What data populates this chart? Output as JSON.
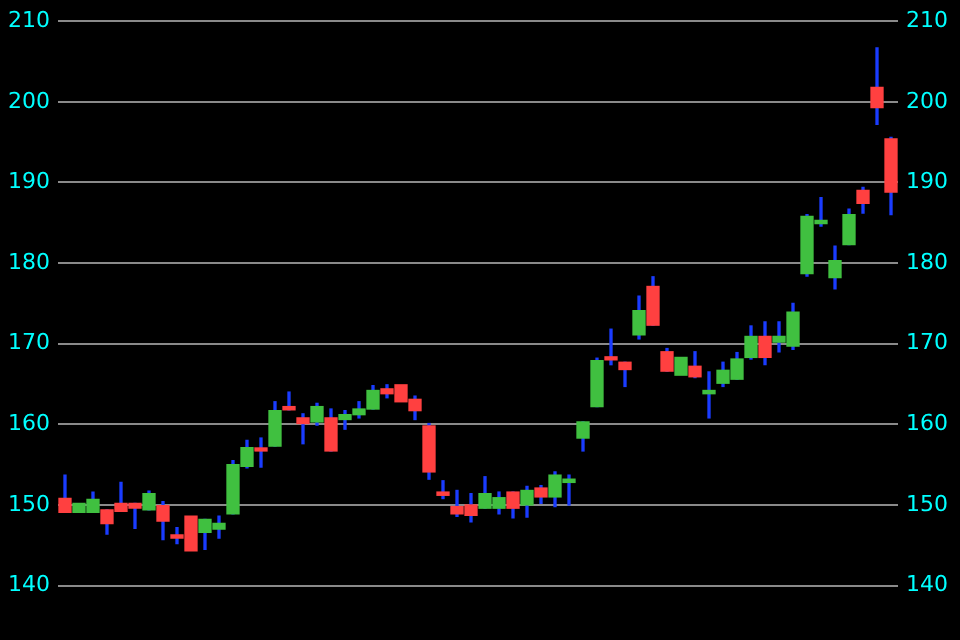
{
  "chart_data": {
    "type": "candlestick",
    "categories": [
      null,
      null,
      null,
      null,
      null,
      null,
      null,
      null,
      null,
      null,
      null,
      null,
      null,
      null,
      null,
      null,
      null,
      null,
      null,
      null,
      null,
      null,
      null,
      null,
      null,
      null,
      null,
      null,
      null,
      null,
      null,
      null,
      null,
      null,
      null,
      null,
      null,
      null,
      null,
      null,
      null,
      null,
      null,
      null,
      null,
      null,
      null,
      null,
      null,
      null,
      null,
      null,
      null,
      null,
      null,
      null,
      null,
      null,
      null,
      null
    ],
    "ohlc": [
      [
        150.8,
        153.7,
        149.1,
        149.1
      ],
      [
        149.1,
        150.2,
        149.1,
        150.2
      ],
      [
        149.1,
        151.6,
        149.1,
        150.7
      ],
      [
        149.4,
        149.4,
        146.4,
        147.7
      ],
      [
        150.2,
        152.8,
        149.2,
        149.2
      ],
      [
        150.2,
        150.2,
        147.1,
        149.6
      ],
      [
        149.4,
        151.7,
        149.4,
        151.4
      ],
      [
        149.9,
        150.4,
        145.7,
        148.0
      ],
      [
        146.3,
        147.2,
        145.2,
        145.9
      ],
      [
        148.6,
        148.6,
        144.3,
        144.3
      ],
      [
        146.6,
        148.2,
        144.5,
        148.2
      ],
      [
        147.0,
        148.6,
        145.9,
        147.7
      ],
      [
        148.9,
        155.5,
        148.9,
        155.0
      ],
      [
        154.8,
        158.0,
        154.6,
        157.1
      ],
      [
        156.9,
        158.3,
        154.7,
        156.7
      ],
      [
        157.3,
        162.8,
        157.3,
        161.7
      ],
      [
        162.2,
        164.0,
        161.8,
        161.8
      ],
      [
        160.8,
        161.3,
        157.6,
        160.1
      ],
      [
        160.3,
        162.6,
        159.9,
        162.2
      ],
      [
        160.8,
        161.9,
        156.7,
        156.7
      ],
      [
        160.6,
        161.7,
        159.4,
        161.2
      ],
      [
        161.2,
        162.8,
        160.8,
        161.9
      ],
      [
        161.9,
        164.8,
        161.9,
        164.2
      ],
      [
        164.4,
        164.9,
        163.3,
        163.8
      ],
      [
        164.9,
        164.9,
        162.8,
        162.8
      ],
      [
        163.1,
        163.5,
        160.6,
        161.7
      ],
      [
        159.8,
        160.1,
        153.2,
        154.1
      ],
      [
        151.6,
        153.0,
        150.8,
        151.2
      ],
      [
        149.8,
        151.8,
        148.6,
        148.9
      ],
      [
        150.0,
        151.4,
        147.9,
        148.7
      ],
      [
        149.6,
        153.5,
        149.6,
        151.4
      ],
      [
        149.6,
        151.6,
        148.9,
        150.9
      ],
      [
        151.6,
        151.6,
        148.4,
        149.6
      ],
      [
        150.0,
        152.3,
        148.5,
        151.8
      ],
      [
        152.1,
        152.4,
        150.2,
        151.0
      ],
      [
        151.0,
        154.1,
        149.8,
        153.7
      ],
      [
        152.8,
        153.7,
        150.0,
        153.2
      ],
      [
        158.3,
        160.3,
        156.7,
        160.3
      ],
      [
        162.2,
        168.2,
        162.2,
        167.9
      ],
      [
        168.1,
        171.8,
        167.4,
        168.0
      ],
      [
        167.7,
        167.7,
        164.7,
        166.8
      ],
      [
        171.1,
        175.9,
        170.6,
        174.1
      ],
      [
        177.1,
        178.3,
        172.3,
        172.3
      ],
      [
        169.0,
        169.4,
        166.6,
        166.6
      ],
      [
        166.1,
        168.3,
        166.1,
        168.3
      ],
      [
        167.2,
        169.0,
        165.8,
        165.9
      ],
      [
        163.8,
        166.5,
        160.8,
        164.2
      ],
      [
        165.1,
        167.7,
        164.7,
        166.7
      ],
      [
        165.6,
        168.9,
        165.6,
        168.1
      ],
      [
        168.3,
        172.2,
        168.1,
        170.9
      ],
      [
        170.9,
        172.7,
        167.4,
        168.3
      ],
      [
        170.2,
        172.7,
        169.0,
        170.9
      ],
      [
        169.7,
        175.0,
        169.3,
        173.9
      ],
      [
        178.7,
        186.0,
        178.4,
        185.8
      ],
      [
        184.9,
        188.1,
        184.6,
        185.3
      ],
      [
        178.2,
        182.1,
        176.8,
        180.3
      ],
      [
        182.3,
        186.7,
        182.3,
        186.0
      ],
      [
        189.0,
        189.4,
        186.2,
        187.4
      ],
      [
        201.8,
        206.7,
        197.2,
        199.3
      ],
      [
        195.4,
        195.6,
        186.0,
        188.8
      ]
    ],
    "ylim": [
      140,
      210
    ],
    "yticks": [
      140,
      150,
      160,
      170,
      180,
      190,
      200,
      210
    ],
    "y2lim": [
      140,
      210
    ],
    "y2ticks": [
      140,
      150,
      160,
      170,
      180,
      190,
      200,
      210
    ],
    "grid": "y",
    "legend": false
  }
}
